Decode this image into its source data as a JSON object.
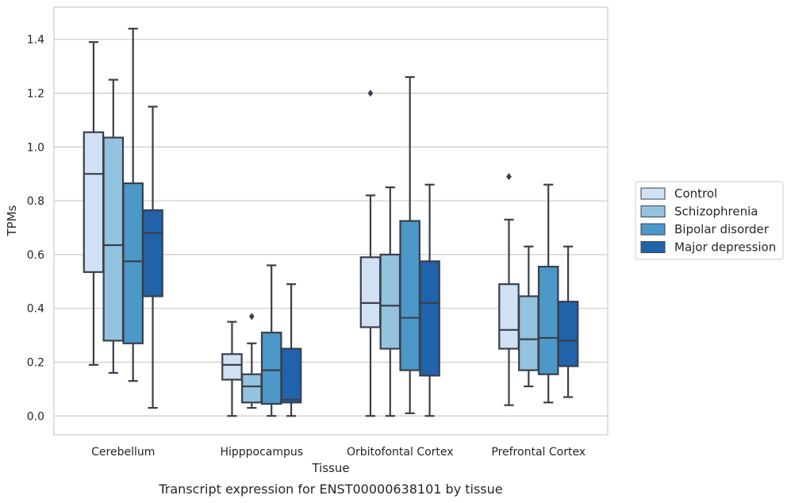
{
  "chart_data": {
    "type": "boxplot",
    "title": "",
    "caption": "Transcript expression for ENST00000638101 by tissue",
    "xlabel": "Tissue",
    "ylabel": "TPMs",
    "ylim": [
      -0.07,
      1.52
    ],
    "yticks": [
      0.0,
      0.2,
      0.4,
      0.6,
      0.8,
      1.0,
      1.2,
      1.4
    ],
    "ytick_labels": [
      "0.0",
      "0.2",
      "0.4",
      "0.6",
      "0.8",
      "1.0",
      "1.2",
      "1.4"
    ],
    "grid": "horizontal",
    "legend_position": "right",
    "categories": [
      "Cerebellum",
      "Hipppocampus",
      "Orbitofontal Cortex",
      "Prefrontal Cortex"
    ],
    "series": [
      {
        "name": "Control",
        "color": "#cfe1f2",
        "boxes": [
          {
            "whisker_low": 0.19,
            "q1": 0.535,
            "median": 0.9,
            "q3": 1.055,
            "whisker_high": 1.39,
            "outliers": []
          },
          {
            "whisker_low": 0.0,
            "q1": 0.135,
            "median": 0.19,
            "q3": 0.23,
            "whisker_high": 0.35,
            "outliers": []
          },
          {
            "whisker_low": 0.0,
            "q1": 0.33,
            "median": 0.42,
            "q3": 0.59,
            "whisker_high": 0.82,
            "outliers": [
              1.2
            ]
          },
          {
            "whisker_low": 0.04,
            "q1": 0.25,
            "median": 0.32,
            "q3": 0.49,
            "whisker_high": 0.73,
            "outliers": [
              0.89
            ]
          }
        ]
      },
      {
        "name": "Schizophrenia",
        "color": "#93c3df",
        "boxes": [
          {
            "whisker_low": 0.16,
            "q1": 0.28,
            "median": 0.635,
            "q3": 1.035,
            "whisker_high": 1.25,
            "outliers": []
          },
          {
            "whisker_low": 0.03,
            "q1": 0.05,
            "median": 0.11,
            "q3": 0.155,
            "whisker_high": 0.27,
            "outliers": [
              0.37
            ]
          },
          {
            "whisker_low": 0.0,
            "q1": 0.25,
            "median": 0.41,
            "q3": 0.6,
            "whisker_high": 0.85,
            "outliers": []
          },
          {
            "whisker_low": 0.11,
            "q1": 0.17,
            "median": 0.285,
            "q3": 0.445,
            "whisker_high": 0.63,
            "outliers": []
          }
        ]
      },
      {
        "name": "Bipolar disorder",
        "color": "#4b98c9",
        "boxes": [
          {
            "whisker_low": 0.13,
            "q1": 0.27,
            "median": 0.575,
            "q3": 0.865,
            "whisker_high": 1.44,
            "outliers": []
          },
          {
            "whisker_low": 0.0,
            "q1": 0.045,
            "median": 0.17,
            "q3": 0.31,
            "whisker_high": 0.56,
            "outliers": []
          },
          {
            "whisker_low": 0.01,
            "q1": 0.17,
            "median": 0.365,
            "q3": 0.725,
            "whisker_high": 1.26,
            "outliers": []
          },
          {
            "whisker_low": 0.05,
            "q1": 0.155,
            "median": 0.29,
            "q3": 0.555,
            "whisker_high": 0.86,
            "outliers": []
          }
        ]
      },
      {
        "name": "Major depression",
        "color": "#2163aa",
        "boxes": [
          {
            "whisker_low": 0.03,
            "q1": 0.445,
            "median": 0.68,
            "q3": 0.765,
            "whisker_high": 1.15,
            "outliers": []
          },
          {
            "whisker_low": 0.0,
            "q1": 0.05,
            "median": 0.06,
            "q3": 0.25,
            "whisker_high": 0.49,
            "outliers": []
          },
          {
            "whisker_low": 0.0,
            "q1": 0.15,
            "median": 0.42,
            "q3": 0.575,
            "whisker_high": 0.86,
            "outliers": []
          },
          {
            "whisker_low": 0.07,
            "q1": 0.185,
            "median": 0.28,
            "q3": 0.425,
            "whisker_high": 0.63,
            "outliers": []
          }
        ]
      }
    ]
  },
  "colors": {
    "gridline": "#cccccc",
    "frame": "#cccccc",
    "box_edge": "#3b3f4a"
  }
}
